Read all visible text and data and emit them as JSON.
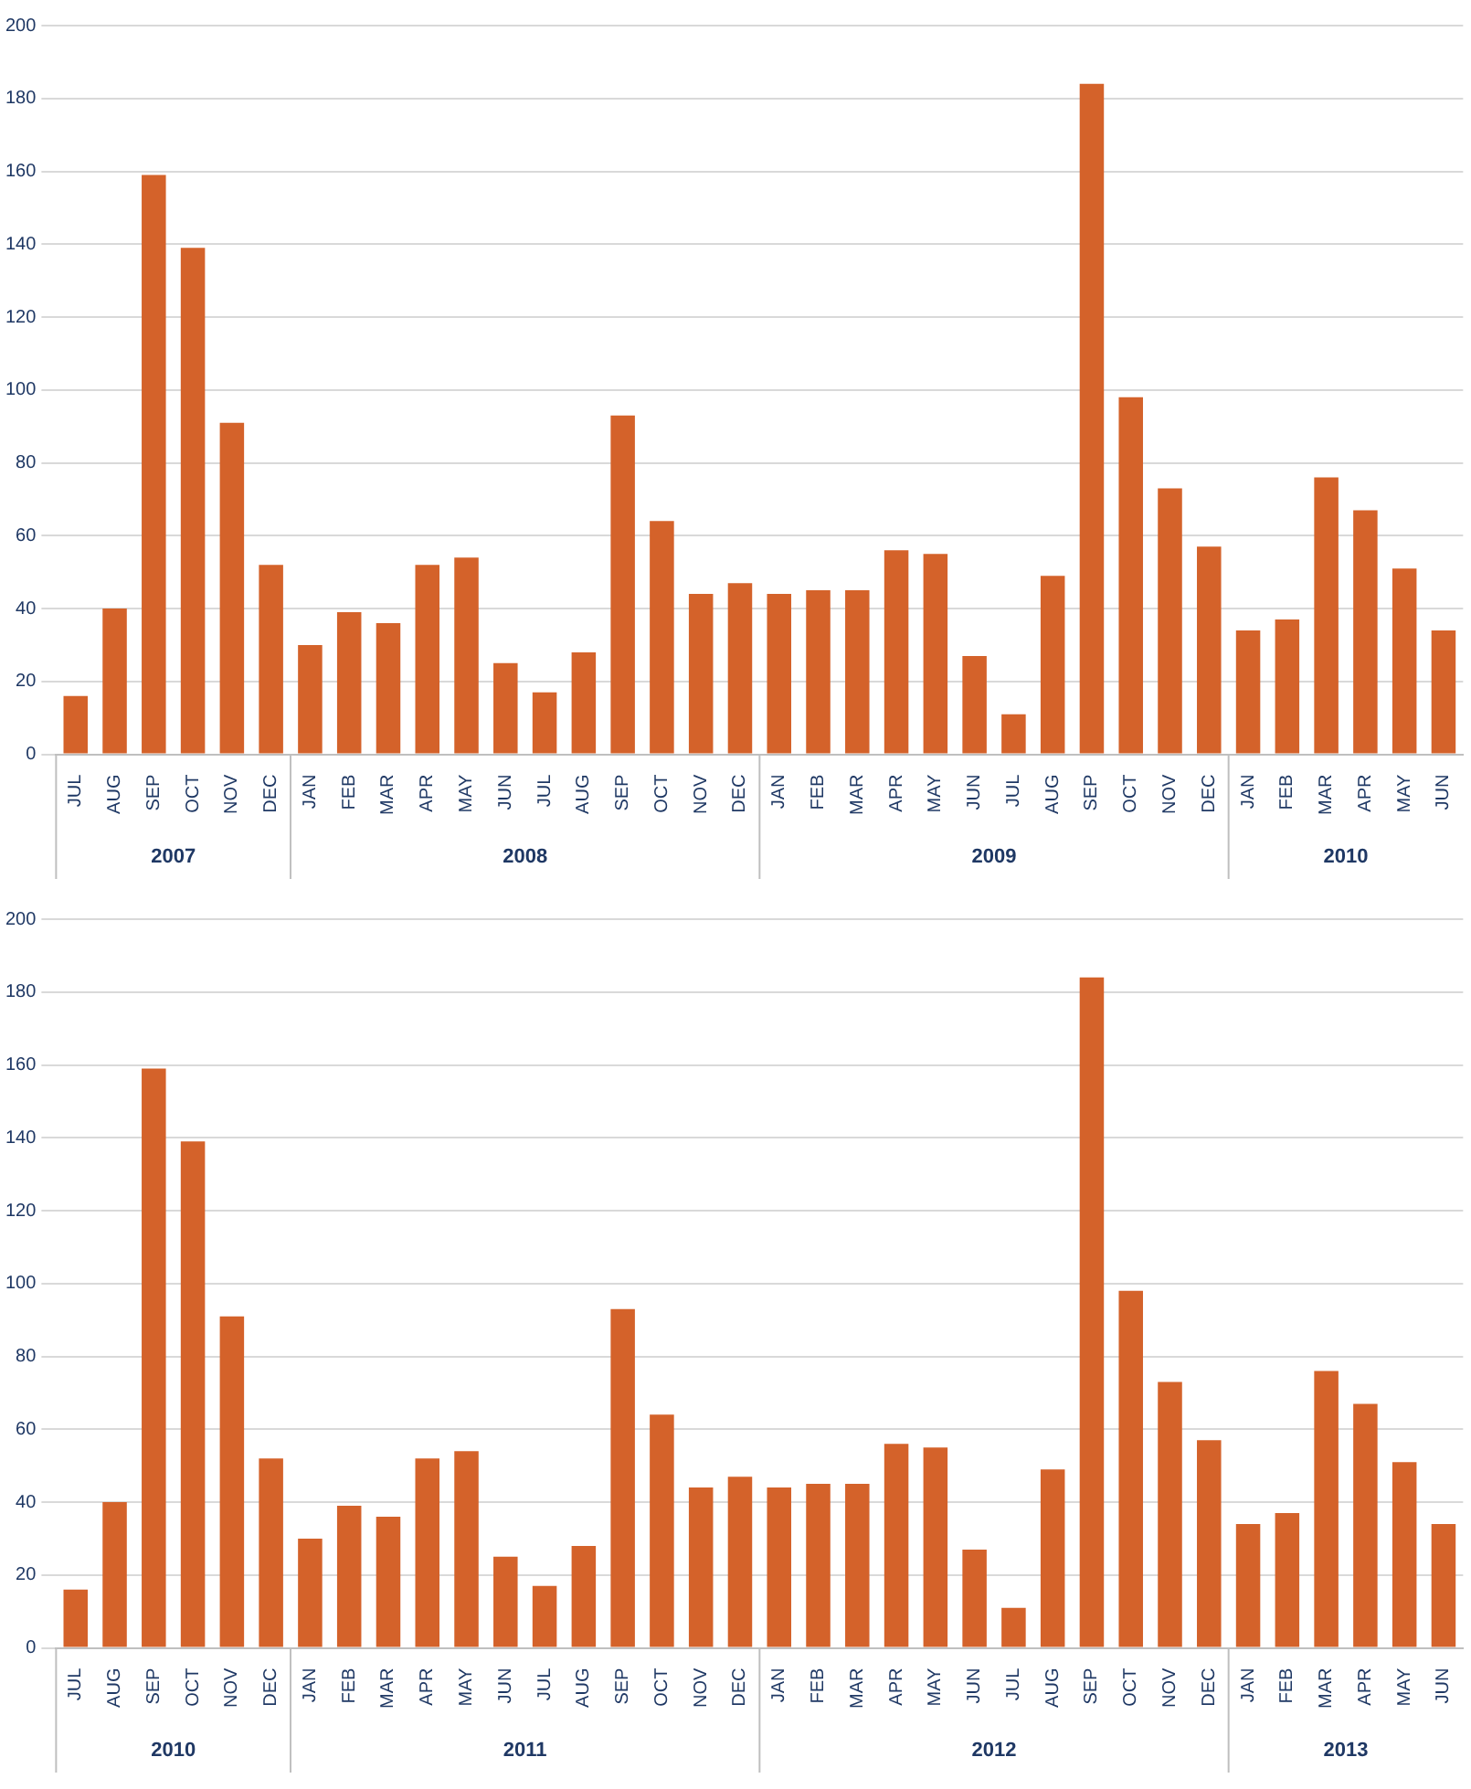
{
  "chart_data": [
    {
      "type": "bar",
      "categories": [
        "JUL",
        "AUG",
        "SEP",
        "OCT",
        "NOV",
        "DEC",
        "JAN",
        "FEB",
        "MAR",
        "APR",
        "MAY",
        "JUN",
        "JUL",
        "AUG",
        "SEP",
        "OCT",
        "NOV",
        "DEC",
        "JAN",
        "FEB",
        "MAR",
        "APR",
        "MAY",
        "JUN",
        "JUL",
        "AUG",
        "SEP",
        "OCT",
        "NOV",
        "DEC",
        "JAN",
        "FEB",
        "MAR",
        "APR",
        "MAY",
        "JUN"
      ],
      "values": [
        16,
        40,
        159,
        139,
        91,
        52,
        30,
        39,
        36,
        52,
        54,
        25,
        17,
        28,
        93,
        64,
        44,
        47,
        44,
        45,
        45,
        56,
        55,
        27,
        11,
        49,
        184,
        98,
        73,
        57,
        34,
        37,
        76,
        67,
        51,
        34
      ],
      "color": "#d4622a",
      "ylim": [
        0,
        200
      ],
      "yticks": [
        0,
        20,
        40,
        60,
        80,
        100,
        120,
        140,
        160,
        180,
        200
      ],
      "grid": "y",
      "legend": false,
      "annotations": [
        "2007",
        "2008",
        "2009",
        "2010"
      ]
    },
    {
      "type": "bar",
      "categories": [
        "JUL",
        "AUG",
        "SEP",
        "OCT",
        "NOV",
        "DEC",
        "JAN",
        "FEB",
        "MAR",
        "APR",
        "MAY",
        "JUN",
        "JUL",
        "AUG",
        "SEP",
        "OCT",
        "NOV",
        "DEC",
        "JAN",
        "FEB",
        "MAR",
        "APR",
        "MAY",
        "JUN",
        "JUL",
        "AUG",
        "SEP",
        "OCT",
        "NOV",
        "DEC",
        "JAN",
        "FEB",
        "MAR",
        "APR",
        "MAY",
        "JUN"
      ],
      "values": [
        16,
        40,
        159,
        139,
        91,
        52,
        30,
        39,
        36,
        52,
        54,
        25,
        17,
        28,
        93,
        64,
        44,
        47,
        44,
        45,
        45,
        56,
        55,
        27,
        11,
        49,
        184,
        98,
        73,
        57,
        34,
        37,
        76,
        67,
        51,
        34
      ],
      "color": "#d4622a",
      "ylim": [
        0,
        200
      ],
      "yticks": [
        0,
        20,
        40,
        60,
        80,
        100,
        120,
        140,
        160,
        180,
        200
      ],
      "grid": "y",
      "legend": false,
      "annotations": [
        "2010",
        "2011",
        "2012",
        "2013"
      ]
    }
  ]
}
